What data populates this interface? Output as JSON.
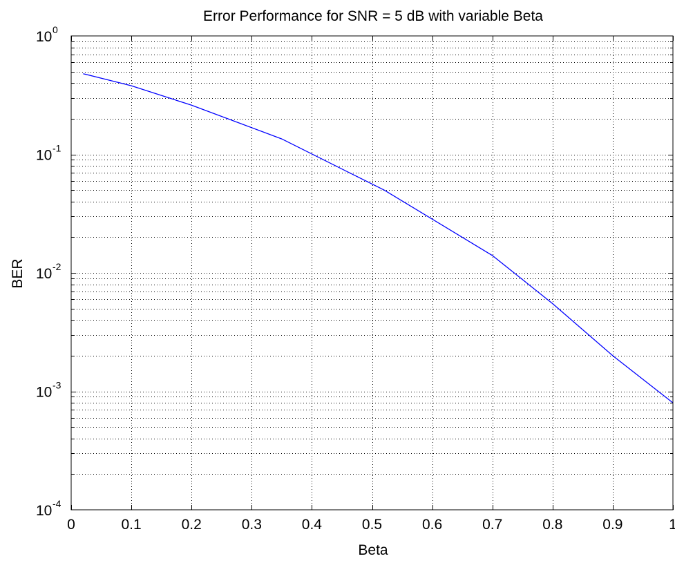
{
  "chart_data": {
    "type": "line",
    "title": "Error Performance for SNR = 5 dB with variable Beta",
    "xlabel": "Beta",
    "ylabel": "BER",
    "xlim": [
      0,
      1
    ],
    "ylim": [
      0.0001,
      1
    ],
    "yscale": "log",
    "grid": true,
    "grid_style": "dotted",
    "x_ticks": [
      0,
      0.1,
      0.2,
      0.3,
      0.4,
      0.5,
      0.6,
      0.7,
      0.8,
      0.9,
      1
    ],
    "x_tick_labels": [
      "0",
      "0.1",
      "0.2",
      "0.3",
      "0.4",
      "0.5",
      "0.6",
      "0.7",
      "0.8",
      "0.9",
      "1"
    ],
    "y_ticks": [
      {
        "value": 1,
        "base": "10",
        "exp": "0"
      },
      {
        "value": 0.1,
        "base": "10",
        "exp": "-1"
      },
      {
        "value": 0.01,
        "base": "10",
        "exp": "-2"
      },
      {
        "value": 0.001,
        "base": "10",
        "exp": "-3"
      },
      {
        "value": 0.0001,
        "base": "10",
        "exp": "-4"
      }
    ],
    "series": [
      {
        "color": "#0000ff",
        "x": [
          0.02,
          0.1,
          0.2,
          0.35,
          0.52,
          0.7,
          0.8,
          0.9,
          1.0
        ],
        "y": [
          0.48,
          0.38,
          0.26,
          0.135,
          0.05,
          0.014,
          0.0055,
          0.002,
          0.0008
        ]
      }
    ]
  }
}
